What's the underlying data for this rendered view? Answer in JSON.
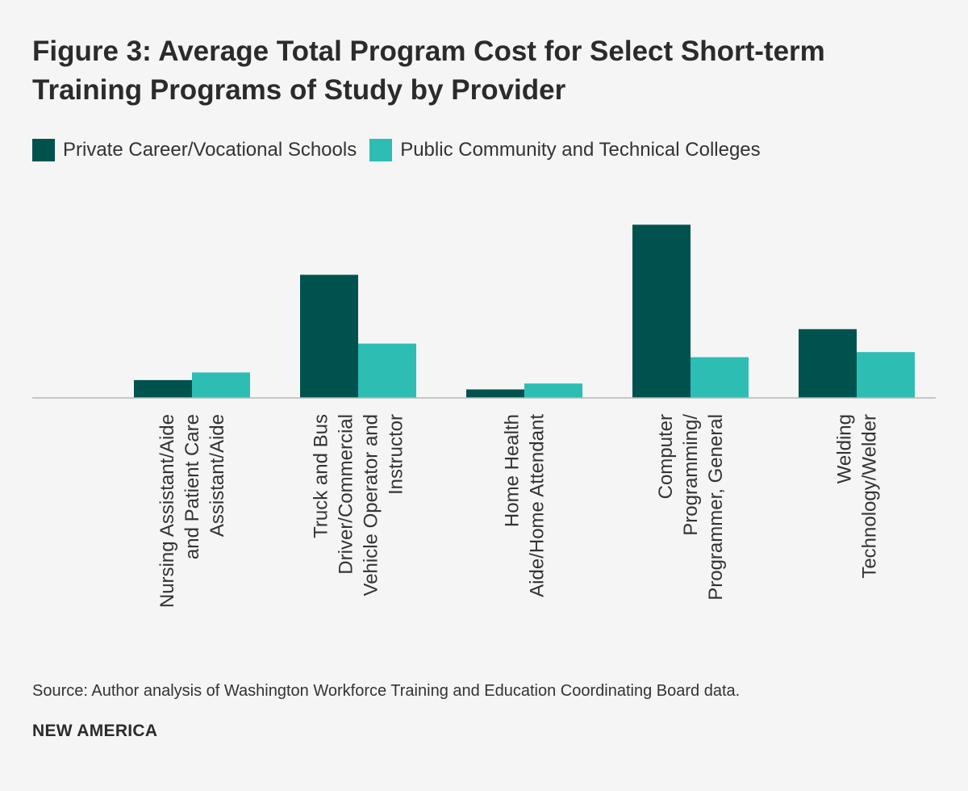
{
  "chart_data": {
    "type": "bar",
    "title": "Figure 3: Average Total Program Cost for Select Short-term Training Programs of Study by Provider",
    "categories": [
      [
        "Nursing Assistant/Aide",
        "and Patient Care",
        "Assistant/Aide"
      ],
      [
        "Truck and Bus",
        "Driver/Commercial",
        "Vehicle Operator and",
        "Instructor"
      ],
      [
        "Home Health",
        "Aide/Home Attendant"
      ],
      [
        "Computer",
        "Programming/",
        "Programmer, General"
      ],
      [
        "Welding",
        "Technology/Welder"
      ]
    ],
    "series": [
      {
        "name": "Private Career/Vocational Schools",
        "color": "#00524f",
        "values": [
          21,
          145,
          10,
          204,
          81
        ]
      },
      {
        "name": "Public Community and Technical Colleges",
        "color": "#2ebdb3",
        "values": [
          30,
          64,
          17,
          48,
          54
        ]
      }
    ],
    "xlabel": "",
    "ylabel": "",
    "ylim": [
      0,
      250
    ],
    "grid": false,
    "legend": "top-left"
  },
  "footer": {
    "source": "Source: Author analysis of Washington Workforce Training and Education Coordinating Board data.",
    "brand": "NEW AMERICA"
  }
}
